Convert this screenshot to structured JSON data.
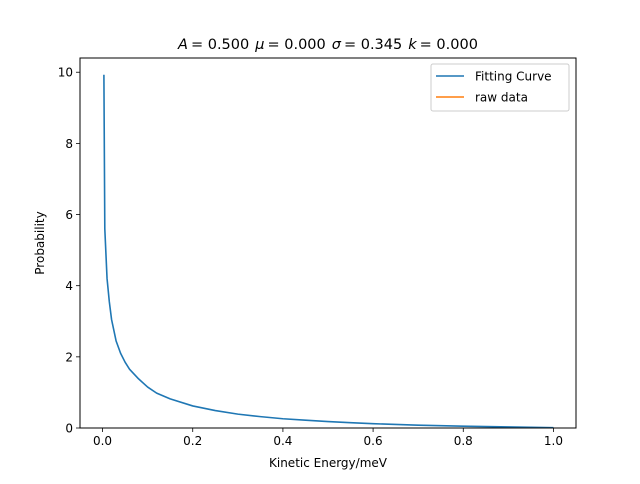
{
  "chart_data": {
    "type": "line",
    "title": {
      "A_sym": "A",
      "A_val": "= 0.500",
      "mu_sym": "μ",
      "mu_val": "= 0.000",
      "sigma_sym": "σ",
      "sigma_val": "= 0.345",
      "k_sym": "k",
      "k_val": "= 0.000"
    },
    "xlabel": "Kinetic Energy/meV",
    "ylabel": "Probability",
    "xlim": [
      -0.05,
      1.05
    ],
    "ylim": [
      0,
      10.4
    ],
    "xticks": [
      0.0,
      0.2,
      0.4,
      0.6,
      0.8,
      1.0
    ],
    "xtick_labels": [
      "0.0",
      "0.2",
      "0.4",
      "0.6",
      "0.8",
      "1.0"
    ],
    "yticks": [
      0,
      2,
      4,
      6,
      8,
      10
    ],
    "ytick_labels": [
      "0",
      "2",
      "4",
      "6",
      "8",
      "10"
    ],
    "grid": false,
    "legend_position": "upper right",
    "series": [
      {
        "name": "Fitting Curve",
        "color": "#1f77b4",
        "x": [
          0.003,
          0.005,
          0.01,
          0.015,
          0.02,
          0.03,
          0.04,
          0.05,
          0.06,
          0.08,
          0.1,
          0.12,
          0.15,
          0.2,
          0.25,
          0.3,
          0.35,
          0.4,
          0.45,
          0.5,
          0.55,
          0.6,
          0.65,
          0.7,
          0.75,
          0.8,
          0.85,
          0.9,
          0.95,
          1.0
        ],
        "y": [
          9.93,
          5.6,
          4.2,
          3.55,
          3.05,
          2.45,
          2.1,
          1.85,
          1.65,
          1.38,
          1.15,
          0.98,
          0.82,
          0.62,
          0.49,
          0.39,
          0.32,
          0.26,
          0.22,
          0.18,
          0.15,
          0.12,
          0.1,
          0.08,
          0.065,
          0.05,
          0.04,
          0.03,
          0.02,
          0.01
        ]
      },
      {
        "name": "raw data",
        "color": "#ff7f0e",
        "x": [],
        "y": []
      }
    ]
  }
}
